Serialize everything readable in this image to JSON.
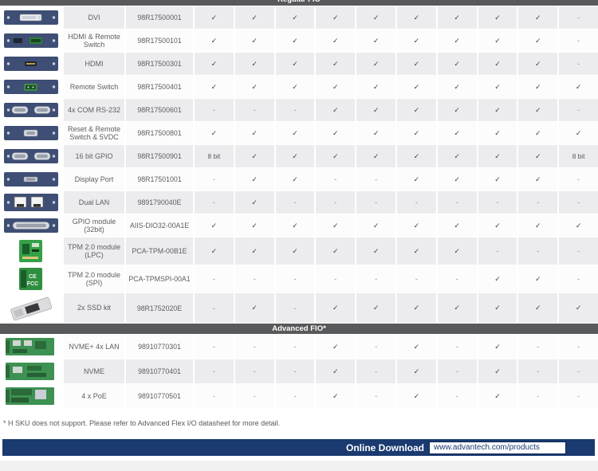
{
  "table": {
    "sections": [
      {
        "label": "Regular FIO",
        "rows": [
          {
            "name": "DVI",
            "part": "98R17500001",
            "icon": "dvi-bracket",
            "values": [
              "✓",
              "✓",
              "✓",
              "✓",
              "✓",
              "✓",
              "✓",
              "✓",
              "✓",
              "-"
            ]
          },
          {
            "name": "HDMI & Remote Switch",
            "part": "98R17500101",
            "icon": "hdmi-remote-switch-bracket",
            "values": [
              "✓",
              "✓",
              "✓",
              "✓",
              "✓",
              "✓",
              "✓",
              "✓",
              "✓",
              "-"
            ]
          },
          {
            "name": "HDMI",
            "part": "98R17500301",
            "icon": "hdmi-bracket",
            "values": [
              "✓",
              "✓",
              "✓",
              "✓",
              "✓",
              "✓",
              "✓",
              "✓",
              "✓",
              "-"
            ]
          },
          {
            "name": "Remote Switch",
            "part": "98R17500401",
            "icon": "remote-switch-bracket",
            "values": [
              "✓",
              "✓",
              "✓",
              "✓",
              "✓",
              "✓",
              "✓",
              "✓",
              "✓",
              "✓"
            ]
          },
          {
            "name": "4x COM RS-232",
            "part": "98R17500601",
            "icon": "com-rs232-bracket",
            "values": [
              "-",
              "-",
              "-",
              "✓",
              "✓",
              "✓",
              "✓",
              "✓",
              "✓",
              "-"
            ]
          },
          {
            "name": "Reset & Remote Switch & 5VDC",
            "part": "98R17500801",
            "icon": "reset-remote-bracket",
            "values": [
              "✓",
              "✓",
              "✓",
              "✓",
              "✓",
              "✓",
              "✓",
              "✓",
              "✓",
              "✓"
            ]
          },
          {
            "name": "16 bit GPIO",
            "part": "98R17500901",
            "icon": "gpio16-bracket",
            "values": [
              "8 bit",
              "✓",
              "✓",
              "✓",
              "✓",
              "✓",
              "✓",
              "✓",
              "✓",
              "8 bit"
            ]
          },
          {
            "name": "Display Port",
            "part": "98R17501001",
            "icon": "display-port-bracket",
            "values": [
              "-",
              "✓",
              "✓",
              "-",
              "-",
              "✓",
              "✓",
              "✓",
              "✓",
              "-"
            ]
          },
          {
            "name": "Dual LAN",
            "part": "9891790040E",
            "icon": "dual-lan-bracket",
            "values": [
              "-",
              "✓",
              "-",
              "-",
              "-",
              "-",
              "-",
              "-",
              "-",
              "-"
            ]
          },
          {
            "name": "GPIO module (32bit)",
            "part": "AIIS-DIO32-00A1E",
            "icon": "gpio32-bracket",
            "values": [
              "✓",
              "✓",
              "✓",
              "✓",
              "✓",
              "✓",
              "✓",
              "✓",
              "✓",
              "✓"
            ]
          },
          {
            "name": "TPM 2.0 module (LPC)",
            "part": "PCA-TPM-00B1E",
            "icon": "tpm-lpc-module",
            "values": [
              "✓",
              "✓",
              "✓",
              "✓",
              "✓",
              "✓",
              "✓",
              "-",
              "-",
              "-"
            ]
          },
          {
            "name": "TPM 2.0 module (SPI)",
            "part": "PCA-TPMSPI-00A1",
            "icon": "tpm-spi-module",
            "values": [
              "-",
              "-",
              "-",
              "-",
              "-",
              "-",
              "-",
              "✓",
              "✓",
              "-"
            ]
          },
          {
            "name": "2x SSD kit",
            "part": "98R1752020E",
            "icon": "ssd-kit",
            "values": [
              "-",
              "✓",
              "-",
              "✓",
              "✓",
              "✓",
              "✓",
              "✓",
              "✓",
              "✓"
            ]
          }
        ]
      },
      {
        "label": "Advanced FIO*",
        "rows": [
          {
            "name": "NVME+ 4x LAN",
            "part": "98910770301",
            "icon": "nvme-lan-board",
            "values": [
              "-",
              "-",
              "-",
              "✓",
              "-",
              "✓",
              "-",
              "✓",
              "-",
              "-"
            ]
          },
          {
            "name": "NVME",
            "part": "98910770401",
            "icon": "nvme-board",
            "values": [
              "-",
              "-",
              "-",
              "✓",
              "-",
              "✓",
              "-",
              "✓",
              "-",
              "-"
            ]
          },
          {
            "name": "4 x PoE",
            "part": "98910770501",
            "icon": "poe-board",
            "values": [
              "-",
              "-",
              "-",
              "✓",
              "-",
              "✓",
              "-",
              "✓",
              "-",
              "-"
            ]
          }
        ]
      }
    ]
  },
  "footnote": "* H SKU does not support. Please refer to Advanced Flex I/O datasheet for more detail.",
  "download_bar": {
    "label": "Online Download",
    "url": "www.advantech.com/products"
  },
  "colors": {
    "accent_navy": "#1a3a70",
    "section_bar_gray": "#58595b",
    "row_stripe_gray": "#ececee",
    "check_mark": "#414042"
  }
}
